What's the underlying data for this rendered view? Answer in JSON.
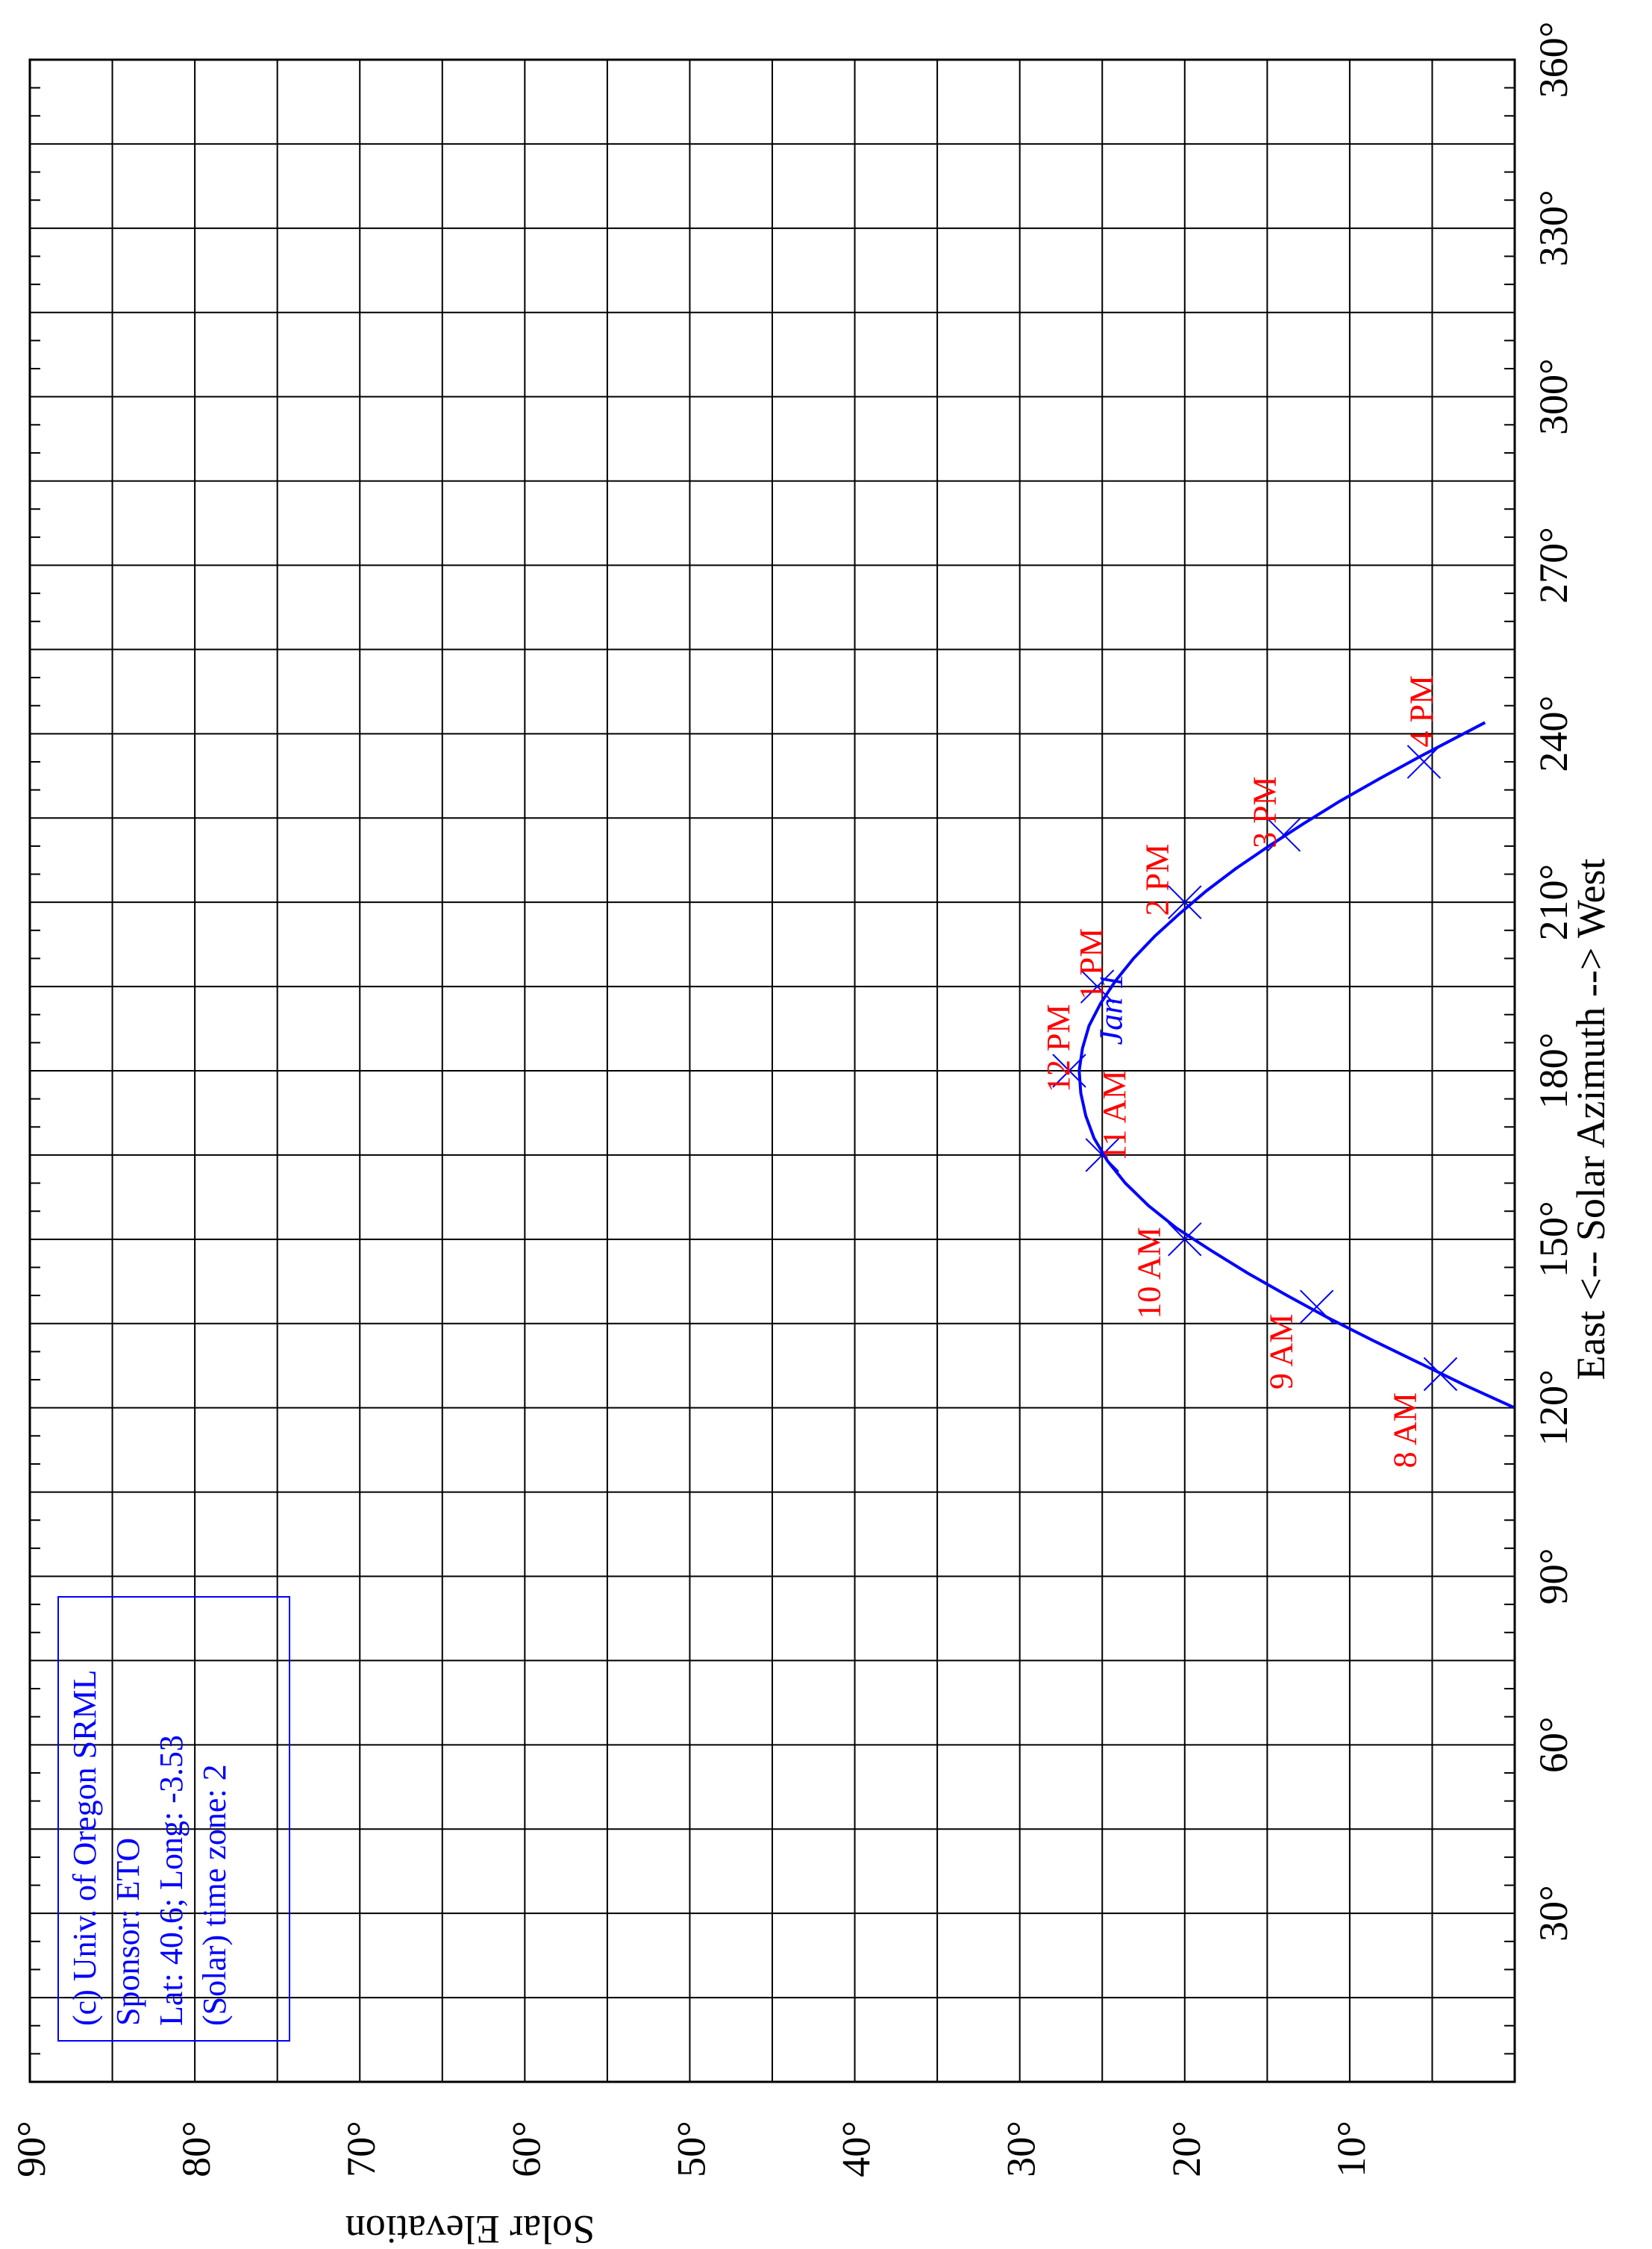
{
  "chart_data": {
    "type": "line",
    "orientation": "rotated-90-clockwise",
    "title": "",
    "xlabel": "East <-- Solar Azimuth --> West",
    "ylabel": "Solar Elevation",
    "xlim": [
      0,
      360
    ],
    "ylim": [
      0,
      90
    ],
    "grid": true,
    "x_ticks": [
      {
        "value": 30,
        "label": "30°"
      },
      {
        "value": 60,
        "label": "60°"
      },
      {
        "value": 90,
        "label": "90°"
      },
      {
        "value": 120,
        "label": "120°"
      },
      {
        "value": 150,
        "label": "150°"
      },
      {
        "value": 180,
        "label": "180°"
      },
      {
        "value": 210,
        "label": "210°"
      },
      {
        "value": 240,
        "label": "240°"
      },
      {
        "value": 270,
        "label": "270°"
      },
      {
        "value": 300,
        "label": "300°"
      },
      {
        "value": 330,
        "label": "330°"
      },
      {
        "value": 360,
        "label": "360°"
      }
    ],
    "y_ticks": [
      {
        "value": 10,
        "label": "10°"
      },
      {
        "value": 20,
        "label": "20°"
      },
      {
        "value": 30,
        "label": "30°"
      },
      {
        "value": 40,
        "label": "40°"
      },
      {
        "value": 50,
        "label": "50°"
      },
      {
        "value": 60,
        "label": "60°"
      },
      {
        "value": 70,
        "label": "70°"
      },
      {
        "value": 80,
        "label": "80°"
      },
      {
        "value": 90,
        "label": "90°"
      }
    ],
    "series": [
      {
        "name": "Jan 1",
        "color": "#0000ff",
        "points": [
          [
            120.0,
            0.0
          ],
          [
            124.0,
            3.0
          ],
          [
            128.0,
            5.8
          ],
          [
            132.0,
            8.6
          ],
          [
            136.0,
            11.3
          ],
          [
            140.0,
            13.8
          ],
          [
            144.0,
            16.2
          ],
          [
            148.0,
            18.4
          ],
          [
            152.0,
            20.5
          ],
          [
            156.0,
            22.2
          ],
          [
            160.0,
            23.6
          ],
          [
            164.0,
            24.7
          ],
          [
            168.0,
            25.5
          ],
          [
            172.0,
            26.0
          ],
          [
            176.0,
            26.3
          ],
          [
            180.0,
            26.4
          ],
          [
            184.0,
            26.2
          ],
          [
            188.0,
            25.8
          ],
          [
            192.0,
            25.1
          ],
          [
            196.0,
            24.2
          ],
          [
            200.0,
            23.1
          ],
          [
            204.0,
            21.8
          ],
          [
            208.0,
            20.3
          ],
          [
            212.0,
            18.7
          ],
          [
            216.0,
            16.9
          ],
          [
            220.0,
            14.9
          ],
          [
            224.0,
            12.8
          ],
          [
            228.0,
            10.6
          ],
          [
            232.0,
            8.2
          ],
          [
            236.0,
            5.7
          ],
          [
            240.0,
            3.1
          ],
          [
            242.0,
            1.8
          ]
        ],
        "label": {
          "text": "Jan 1",
          "x": 191,
          "y": 23.8
        }
      }
    ],
    "hour_markers": [
      {
        "x": 126,
        "y": 4.5,
        "label": "8 AM",
        "label_x": 116,
        "label_y": 6.0
      },
      {
        "x": 138,
        "y": 12.0,
        "label": "9 AM",
        "label_x": 130,
        "label_y": 13.5
      },
      {
        "x": 150,
        "y": 20.0,
        "label": "10 AM",
        "label_x": 144,
        "label_y": 21.5
      },
      {
        "x": 165,
        "y": 25.0,
        "label": "11 AM",
        "label_x": 172,
        "label_y": 23.6
      },
      {
        "x": 180,
        "y": 27.0,
        "label": "12 PM",
        "label_x": 184,
        "label_y": 27.0
      },
      {
        "x": 195,
        "y": 25.3,
        "label": "1 PM",
        "label_x": 199,
        "label_y": 25.0
      },
      {
        "x": 210,
        "y": 20.0,
        "label": "2 PM",
        "label_x": 214,
        "label_y": 21.0
      },
      {
        "x": 222,
        "y": 14.0,
        "label": "3 PM",
        "label_x": 226,
        "label_y": 14.5
      },
      {
        "x": 235,
        "y": 5.5,
        "label": "4 PM",
        "label_x": 244,
        "label_y": 5.0
      }
    ],
    "marker_color": "#0000ff",
    "hour_label_color": "#ff0000"
  },
  "info_box": {
    "line1": "(c) Univ. of Oregon SRML",
    "line2": "Sponsor: ETO",
    "line3": "Lat: 40.6; Long: -3.53",
    "line4": "(Solar) time zone: 2",
    "color": "#0000ff"
  }
}
